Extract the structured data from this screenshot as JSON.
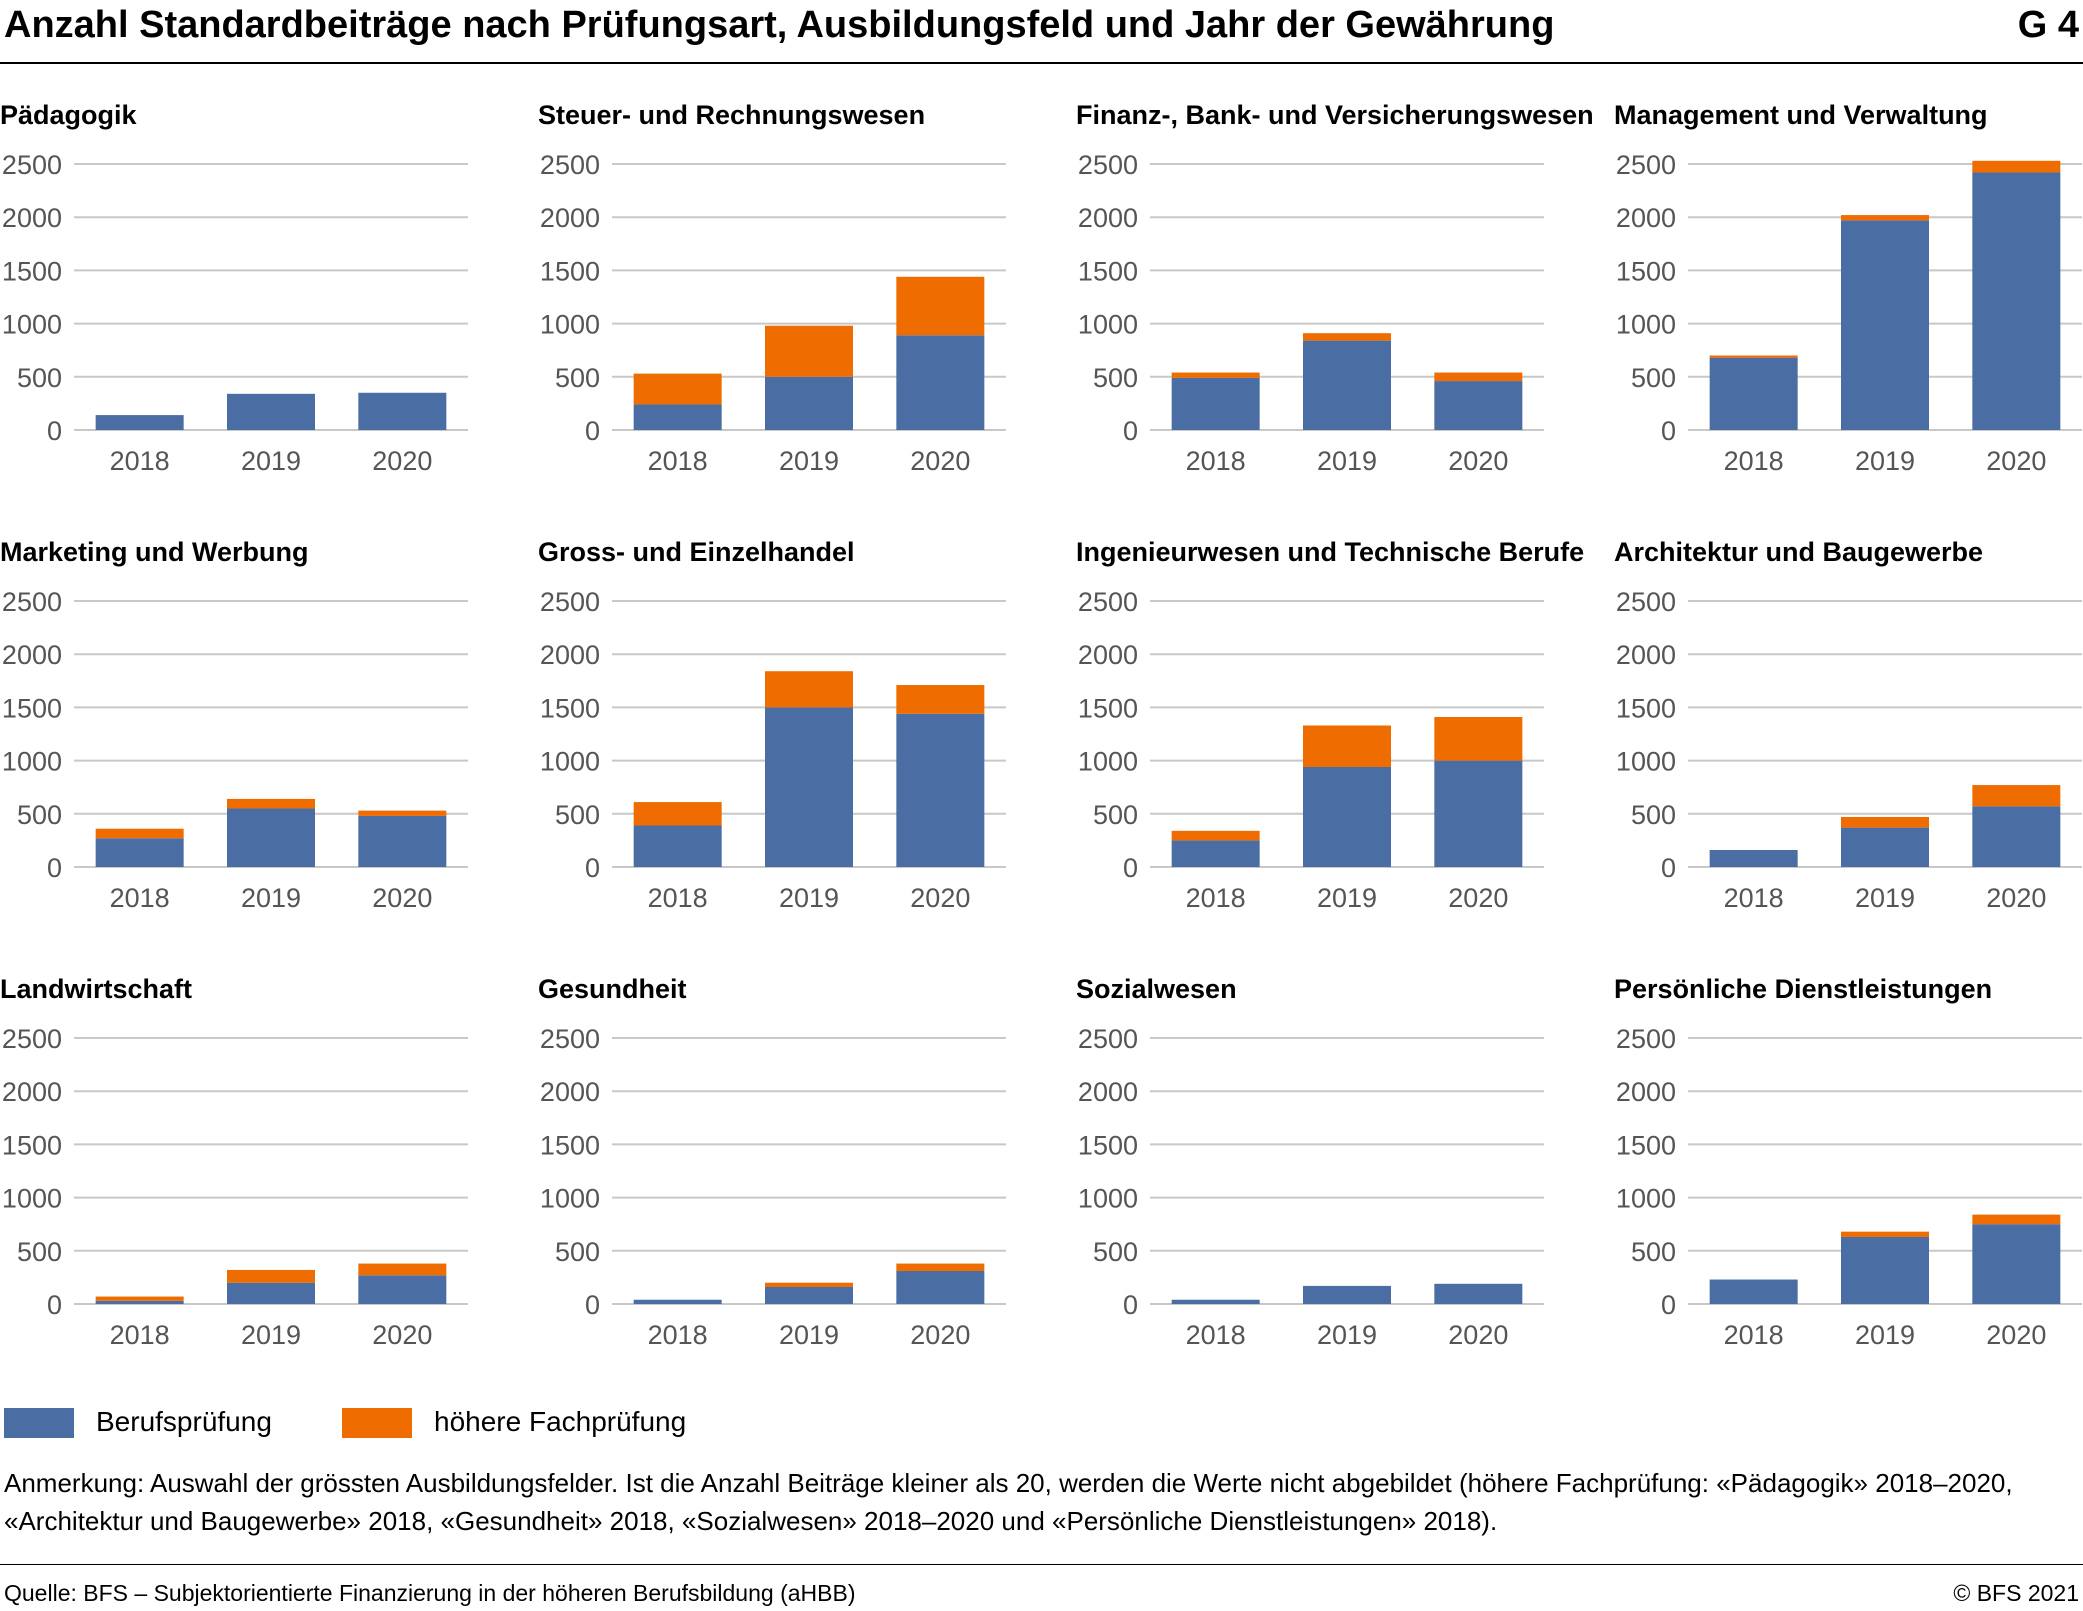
{
  "header": {
    "title": "Anzahl Standardbeiträge nach Prüfungsart, Ausbildungsfeld und Jahr der Gewährung",
    "tag": "G 4"
  },
  "colors": {
    "berufspruefung": "#4a6ea4",
    "hoehere_fachpruefung": "#ef6c00",
    "grid": "#c8c8c8",
    "axis_text": "#555555"
  },
  "legend": {
    "series1": "Berufsprüfung",
    "series2": "höhere Fachprüfung"
  },
  "note": "Anmerkung: Auswahl der grössten Ausbildungsfelder. Ist die Anzahl Beiträge kleiner als 20, werden die Werte nicht abgebildet (höhere Fachprüfung: «Pädagogik» 2018–2020, «Architektur und Baugewerbe» 2018, «Gesundheit» 2018, «Sozialwesen» 2018–2020 und «Persönliche Dienstleistungen» 2018).",
  "footer": {
    "source": "Quelle: BFS – Subjektorientierte Finanzierung in der höheren Berufsbildung (aHBB)",
    "copyright": "© BFS 2021"
  },
  "chart_data": [
    {
      "type": "bar",
      "stacked": true,
      "title": "Pädagogik",
      "categories": [
        "2018",
        "2019",
        "2020"
      ],
      "ylim": [
        0,
        2500
      ],
      "yticks": [
        0,
        500,
        1000,
        1500,
        2000,
        2500
      ],
      "series": [
        {
          "name": "Berufsprüfung",
          "values": [
            140,
            340,
            350
          ]
        },
        {
          "name": "höhere Fachprüfung",
          "values": [
            0,
            0,
            0
          ]
        }
      ]
    },
    {
      "type": "bar",
      "stacked": true,
      "title": "Steuer- und Rechnungswesen",
      "categories": [
        "2018",
        "2019",
        "2020"
      ],
      "ylim": [
        0,
        2500
      ],
      "yticks": [
        0,
        500,
        1000,
        1500,
        2000,
        2500
      ],
      "series": [
        {
          "name": "Berufsprüfung",
          "values": [
            240,
            500,
            890
          ]
        },
        {
          "name": "höhere Fachprüfung",
          "values": [
            290,
            480,
            550
          ]
        }
      ]
    },
    {
      "type": "bar",
      "stacked": true,
      "title": "Finanz-, Bank- und Versicherungswesen",
      "categories": [
        "2018",
        "2019",
        "2020"
      ],
      "ylim": [
        0,
        2500
      ],
      "yticks": [
        0,
        500,
        1000,
        1500,
        2000,
        2500
      ],
      "series": [
        {
          "name": "Berufsprüfung",
          "values": [
            490,
            840,
            460
          ]
        },
        {
          "name": "höhere Fachprüfung",
          "values": [
            50,
            70,
            80
          ]
        }
      ]
    },
    {
      "type": "bar",
      "stacked": true,
      "title": "Management und Verwaltung",
      "categories": [
        "2018",
        "2019",
        "2020"
      ],
      "ylim": [
        0,
        2500
      ],
      "yticks": [
        0,
        500,
        1000,
        1500,
        2000,
        2500
      ],
      "series": [
        {
          "name": "Berufsprüfung",
          "values": [
            680,
            1970,
            2420
          ]
        },
        {
          "name": "höhere Fachprüfung",
          "values": [
            20,
            50,
            110
          ]
        }
      ]
    },
    {
      "type": "bar",
      "stacked": true,
      "title": "Marketing und Werbung",
      "categories": [
        "2018",
        "2019",
        "2020"
      ],
      "ylim": [
        0,
        2500
      ],
      "yticks": [
        0,
        500,
        1000,
        1500,
        2000,
        2500
      ],
      "series": [
        {
          "name": "Berufsprüfung",
          "values": [
            270,
            550,
            480
          ]
        },
        {
          "name": "höhere Fachprüfung",
          "values": [
            90,
            90,
            50
          ]
        }
      ]
    },
    {
      "type": "bar",
      "stacked": true,
      "title": "Gross- und Einzelhandel",
      "categories": [
        "2018",
        "2019",
        "2020"
      ],
      "ylim": [
        0,
        2500
      ],
      "yticks": [
        0,
        500,
        1000,
        1500,
        2000,
        2500
      ],
      "series": [
        {
          "name": "Berufsprüfung",
          "values": [
            390,
            1500,
            1440
          ]
        },
        {
          "name": "höhere Fachprüfung",
          "values": [
            220,
            340,
            270
          ]
        }
      ]
    },
    {
      "type": "bar",
      "stacked": true,
      "title": "Ingenieurwesen und Technische Berufe",
      "categories": [
        "2018",
        "2019",
        "2020"
      ],
      "ylim": [
        0,
        2500
      ],
      "yticks": [
        0,
        500,
        1000,
        1500,
        2000,
        2500
      ],
      "series": [
        {
          "name": "Berufsprüfung",
          "values": [
            250,
            940,
            1000
          ]
        },
        {
          "name": "höhere Fachprüfung",
          "values": [
            90,
            390,
            410
          ]
        }
      ]
    },
    {
      "type": "bar",
      "stacked": true,
      "title": "Architektur und Baugewerbe",
      "categories": [
        "2018",
        "2019",
        "2020"
      ],
      "ylim": [
        0,
        2500
      ],
      "yticks": [
        0,
        500,
        1000,
        1500,
        2000,
        2500
      ],
      "series": [
        {
          "name": "Berufsprüfung",
          "values": [
            160,
            370,
            570
          ]
        },
        {
          "name": "höhere Fachprüfung",
          "values": [
            0,
            100,
            200
          ]
        }
      ]
    },
    {
      "type": "bar",
      "stacked": true,
      "title": "Landwirtschaft",
      "categories": [
        "2018",
        "2019",
        "2020"
      ],
      "ylim": [
        0,
        2500
      ],
      "yticks": [
        0,
        500,
        1000,
        1500,
        2000,
        2500
      ],
      "series": [
        {
          "name": "Berufsprüfung",
          "values": [
            30,
            200,
            270
          ]
        },
        {
          "name": "höhere Fachprüfung",
          "values": [
            40,
            120,
            110
          ]
        }
      ]
    },
    {
      "type": "bar",
      "stacked": true,
      "title": "Gesundheit",
      "categories": [
        "2018",
        "2019",
        "2020"
      ],
      "ylim": [
        0,
        2500
      ],
      "yticks": [
        0,
        500,
        1000,
        1500,
        2000,
        2500
      ],
      "series": [
        {
          "name": "Berufsprüfung",
          "values": [
            40,
            160,
            310
          ]
        },
        {
          "name": "höhere Fachprüfung",
          "values": [
            0,
            40,
            70
          ]
        }
      ]
    },
    {
      "type": "bar",
      "stacked": true,
      "title": "Sozialwesen",
      "categories": [
        "2018",
        "2019",
        "2020"
      ],
      "ylim": [
        0,
        2500
      ],
      "yticks": [
        0,
        500,
        1000,
        1500,
        2000,
        2500
      ],
      "series": [
        {
          "name": "Berufsprüfung",
          "values": [
            40,
            170,
            190
          ]
        },
        {
          "name": "höhere Fachprüfung",
          "values": [
            0,
            0,
            0
          ]
        }
      ]
    },
    {
      "type": "bar",
      "stacked": true,
      "title": "Persönliche Dienstleistungen",
      "categories": [
        "2018",
        "2019",
        "2020"
      ],
      "ylim": [
        0,
        2500
      ],
      "yticks": [
        0,
        500,
        1000,
        1500,
        2000,
        2500
      ],
      "series": [
        {
          "name": "Berufsprüfung",
          "values": [
            230,
            630,
            750
          ]
        },
        {
          "name": "höhere Fachprüfung",
          "values": [
            0,
            50,
            90
          ]
        }
      ]
    }
  ]
}
